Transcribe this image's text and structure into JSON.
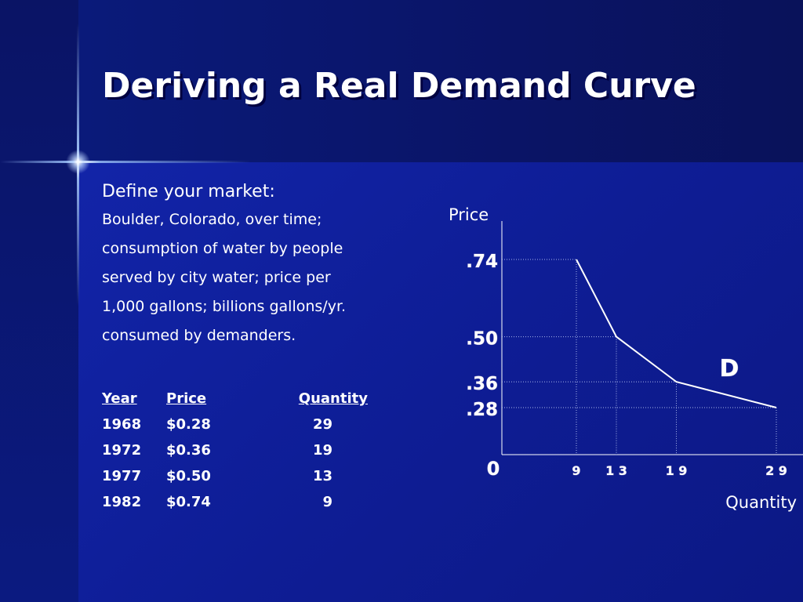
{
  "slide": {
    "title": "Deriving a Real Demand Curve",
    "intro": "Define your market:",
    "paragraph_lines": [
      "Boulder, Colorado, over time;",
      "consumption of water by people",
      "served by city water; price per",
      "1,000 gallons; billions gallons/yr.",
      "consumed by demanders."
    ],
    "table": {
      "headers": {
        "year": "Year",
        "price": "Price",
        "quantity": "Quantity"
      },
      "rows": [
        {
          "year": "1968",
          "price": "$0.28",
          "quantity": "29"
        },
        {
          "year": "1972",
          "price": "$0.36",
          "quantity": "19"
        },
        {
          "year": "1977",
          "price": "$0.50",
          "quantity": "13"
        },
        {
          "year": "1982",
          "price": "$0.74",
          "quantity": "9"
        }
      ]
    }
  },
  "colors": {
    "background": "#0b1a8a",
    "text": "#ffffff",
    "curve": "#ffffff",
    "guides": "#a8b4e8"
  },
  "chart_data": {
    "type": "line",
    "ylabel": "Price",
    "xlabel": "Quantity",
    "origin_label": "0",
    "series": [
      {
        "name": "D",
        "points": [
          {
            "x": 9,
            "y": 0.74
          },
          {
            "x": 13,
            "y": 0.5
          },
          {
            "x": 19,
            "y": 0.36
          },
          {
            "x": 29,
            "y": 0.28
          }
        ]
      }
    ],
    "y_tick_labels": [
      {
        "value": 0.74,
        "label": ".74"
      },
      {
        "value": 0.5,
        "label": ".50"
      },
      {
        "value": 0.36,
        "label": ".36"
      },
      {
        "value": 0.28,
        "label": ".28"
      }
    ],
    "x_tick_labels": [
      {
        "value": 9,
        "label": "9"
      },
      {
        "value": 13,
        "label": "1 3"
      },
      {
        "value": 19,
        "label": "1 9"
      },
      {
        "value": 29,
        "label": "2 9"
      }
    ],
    "reference_lines": "dotted",
    "grid": false
  }
}
